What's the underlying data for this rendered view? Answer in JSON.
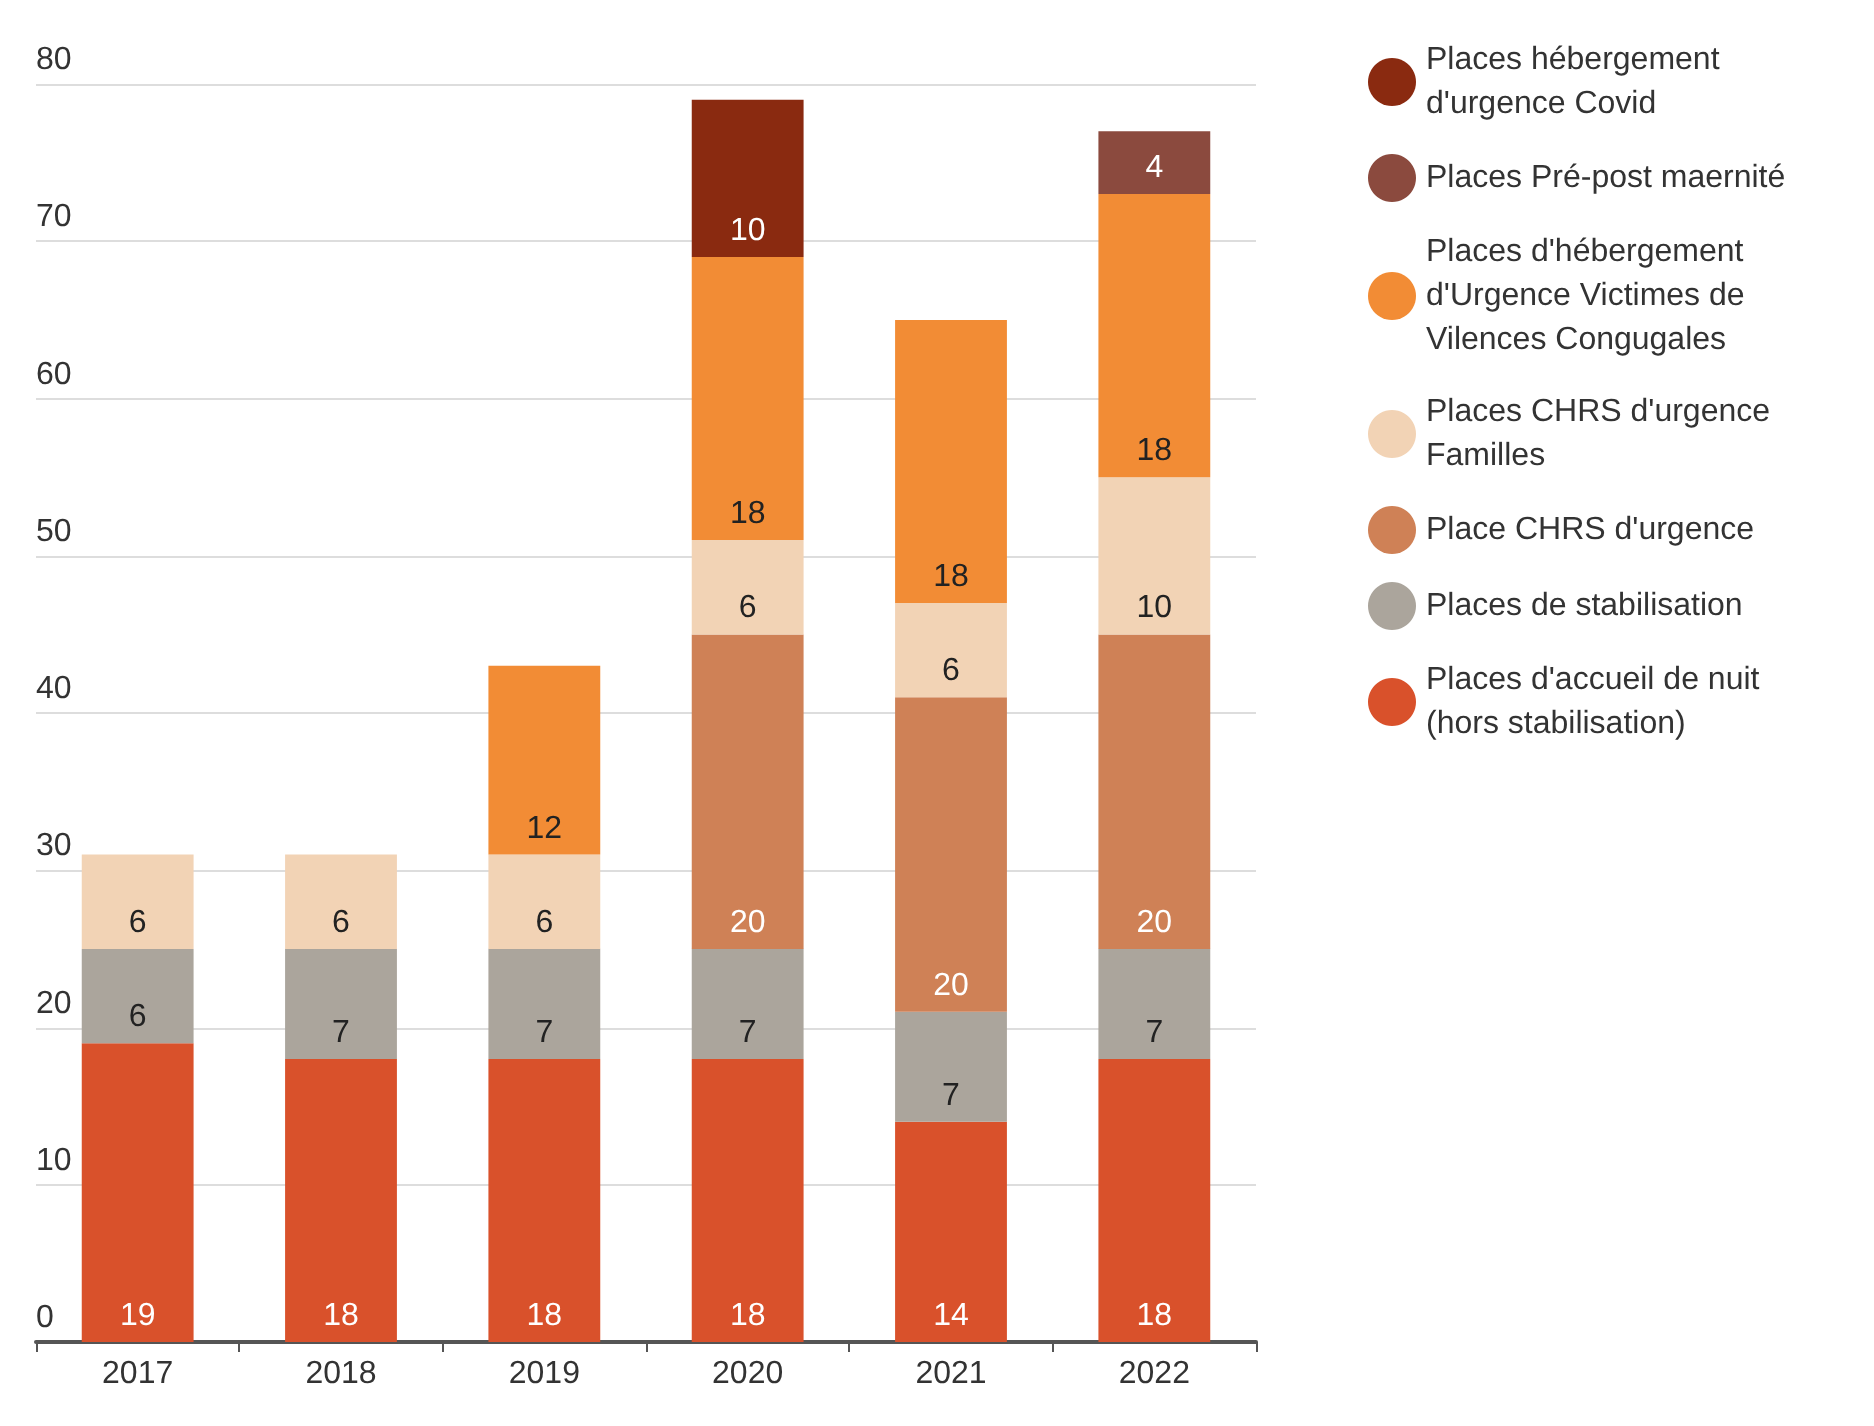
{
  "chart_data": {
    "type": "bar",
    "stacked": true,
    "categories": [
      "2017",
      "2018",
      "2019",
      "2020",
      "2021",
      "2022"
    ],
    "series": [
      {
        "name": "Places d'accueil de nuit (hors stabilisation)",
        "color": "#d9512b",
        "values": [
          19,
          18,
          18,
          18,
          14,
          18
        ]
      },
      {
        "name": "Places de stabilisation",
        "color": "#aba59c",
        "values": [
          6,
          7,
          7,
          7,
          7,
          7
        ]
      },
      {
        "name": "Place CHRS d'urgence",
        "color": "#cf8156",
        "values": [
          null,
          null,
          null,
          20,
          20,
          20
        ]
      },
      {
        "name": "Places CHRS d'urgence Familles",
        "color": "#f2d3b5",
        "values": [
          6,
          6,
          6,
          6,
          6,
          10
        ]
      },
      {
        "name": "Places d'hébergement d'Urgence Victimes de Vilences Congugales",
        "color": "#f28c35",
        "values": [
          null,
          null,
          12,
          18,
          18,
          18
        ]
      },
      {
        "name": "Places Pré-post maernité",
        "color": "#8b4a3e",
        "values": [
          null,
          null,
          null,
          null,
          null,
          4
        ]
      },
      {
        "name": "Places hébergement d'urgence Covid",
        "color": "#8a2a10",
        "values": [
          null,
          null,
          null,
          10,
          null,
          null
        ]
      }
    ],
    "ylim": [
      0,
      80
    ],
    "yticks": [
      0,
      10,
      20,
      30,
      40,
      50,
      60,
      70,
      80
    ],
    "grid": "y",
    "legend": "top right",
    "data_labels": true
  }
}
